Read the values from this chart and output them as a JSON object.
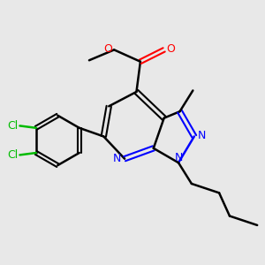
{
  "background_color": "#e8e8e8",
  "bond_color": "#000000",
  "N_color": "#0000ff",
  "O_color": "#ff0000",
  "Cl_color": "#00bb00",
  "figsize": [
    3.0,
    3.0
  ],
  "dpi": 100,
  "xlim": [
    0,
    10
  ],
  "ylim": [
    0,
    10
  ]
}
